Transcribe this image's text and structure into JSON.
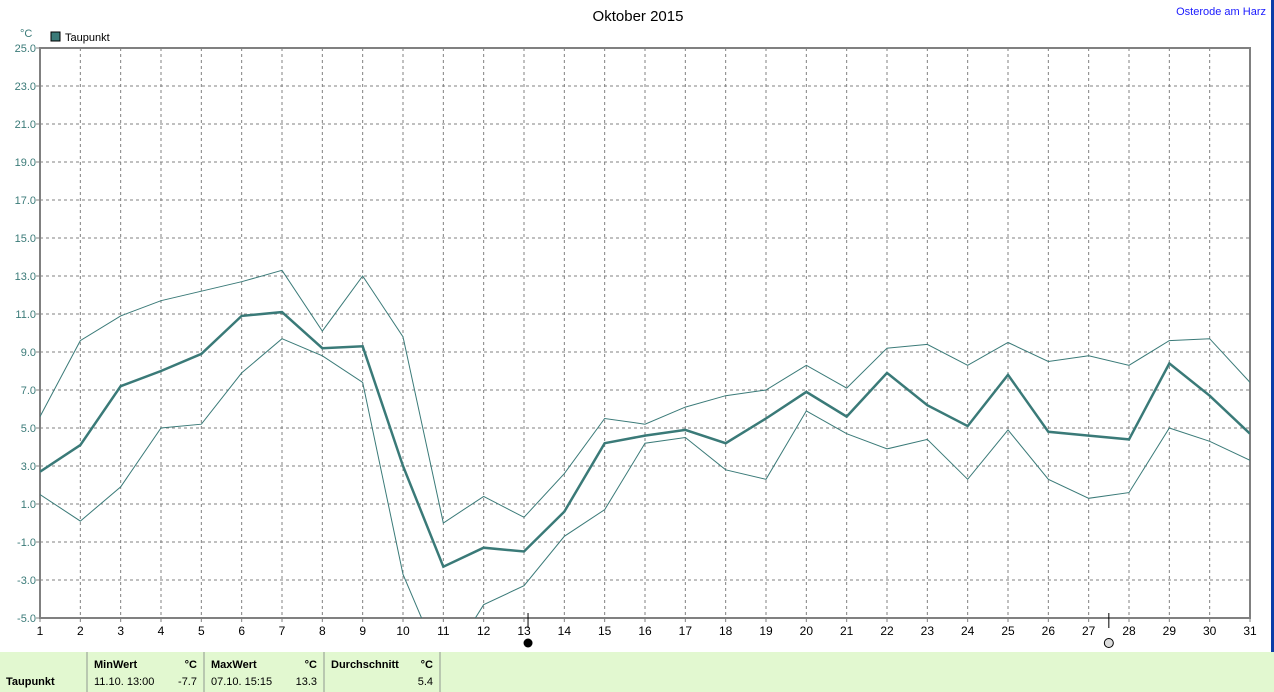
{
  "chart_data": {
    "type": "line",
    "title": "Oktober 2015",
    "ylabel": "°C",
    "ylim": [
      -5,
      25
    ],
    "yticks": [
      "25.0",
      "23.0",
      "21.0",
      "19.0",
      "17.0",
      "15.0",
      "13.0",
      "11.0",
      "9.0",
      "7.0",
      "5.0",
      "3.0",
      "1.0",
      "-1.0",
      "-3.0",
      "-5.0"
    ],
    "x": [
      1,
      2,
      3,
      4,
      5,
      6,
      7,
      8,
      9,
      10,
      11,
      12,
      13,
      14,
      15,
      16,
      17,
      18,
      19,
      20,
      21,
      22,
      23,
      24,
      25,
      26,
      27,
      28,
      29,
      30,
      31
    ],
    "grid": true,
    "legend": {
      "placement": "top-left",
      "entries": [
        "Taupunkt"
      ]
    },
    "series": [
      {
        "name": "Taupunkt",
        "role": "mean",
        "color": "#3a7a78",
        "values": [
          2.7,
          4.1,
          7.2,
          8.0,
          8.9,
          10.9,
          11.1,
          9.2,
          9.3,
          3.0,
          -2.3,
          -1.3,
          -1.5,
          0.6,
          4.2,
          4.6,
          4.9,
          4.2,
          5.5,
          6.9,
          5.6,
          7.9,
          6.2,
          5.1,
          7.8,
          4.8,
          4.6,
          4.4,
          8.4,
          6.7,
          4.7
        ]
      },
      {
        "role": "max",
        "color": "#3a7a78",
        "values": [
          5.6,
          9.6,
          10.9,
          11.7,
          12.2,
          12.7,
          13.3,
          10.1,
          13.0,
          9.8,
          0.0,
          1.4,
          0.3,
          2.6,
          5.5,
          5.2,
          6.1,
          6.7,
          7.0,
          8.3,
          7.1,
          9.2,
          9.4,
          8.3,
          9.5,
          8.5,
          8.8,
          8.3,
          9.6,
          9.7,
          7.4
        ]
      },
      {
        "role": "min",
        "color": "#3a7a78",
        "values": [
          1.5,
          0.1,
          1.9,
          5.0,
          5.2,
          7.9,
          9.7,
          8.8,
          7.4,
          -2.7,
          -7.7,
          -4.3,
          -3.3,
          -0.7,
          0.7,
          4.2,
          4.5,
          2.8,
          2.3,
          5.9,
          4.7,
          3.9,
          4.4,
          2.3,
          4.9,
          2.3,
          1.3,
          1.6,
          5.0,
          4.3,
          3.3
        ]
      }
    ],
    "moon_phases": [
      {
        "icon": "new-moon-icon",
        "day": 13.1
      },
      {
        "icon": "full-moon-icon",
        "day": 27.5
      }
    ]
  },
  "station": "Osterode am Harz",
  "stats": {
    "label": "Taupunkt",
    "min": {
      "header": "MinWert",
      "unit": "°C",
      "date": "11.10.  13:00",
      "value": "-7.7"
    },
    "max": {
      "header": "MaxWert",
      "unit": "°C",
      "date": "07.10.  15:15",
      "value": "13.3"
    },
    "avg": {
      "header": "Durchschnitt",
      "unit": "°C",
      "value": "5.4"
    }
  }
}
